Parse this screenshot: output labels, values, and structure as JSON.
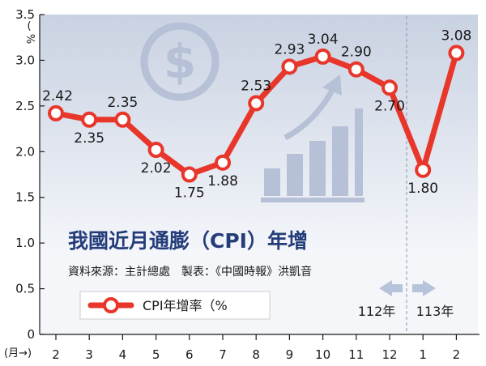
{
  "chart_data": {
    "type": "line",
    "title": "我國近月通膨（CPI）年增",
    "source": "資料來源：主計總處　製表：《中國時報》洪凱音",
    "ylabel": "%",
    "xlabel": "(月→)",
    "categories": [
      "2",
      "3",
      "4",
      "5",
      "6",
      "7",
      "8",
      "9",
      "10",
      "11",
      "12",
      "1",
      "2"
    ],
    "series": [
      {
        "name": "CPI年增率（%",
        "values": [
          2.42,
          2.35,
          2.35,
          2.02,
          1.75,
          1.88,
          2.53,
          2.93,
          3.04,
          2.9,
          2.7,
          1.8,
          3.08
        ],
        "labels": [
          "2.42",
          "2.35",
          "2.35",
          "2.02",
          "1.75",
          "1.88",
          "2.53",
          "2.93",
          "3.04",
          "2.90",
          "2.70",
          "1.80",
          "3.08"
        ]
      }
    ],
    "ylim": [
      0,
      3.5
    ],
    "yticks": [
      "0",
      "0.5",
      "1.0",
      "1.5",
      "2.0",
      "2.5",
      "3.0",
      "3.5"
    ],
    "grid": false,
    "legend": "bottom-left",
    "year_labels": [
      {
        "text": "112年",
        "arrow": "left"
      },
      {
        "text": "113年",
        "arrow": "right"
      }
    ],
    "colors": {
      "line": "#e8362b",
      "marker_fill": "#ffffff",
      "title": "#243d7a",
      "background_top": "#c9d2e2",
      "background_bottom": "#f4f6fa",
      "decor": "#b6c0d6",
      "year_arrow": "#b7c3da"
    }
  }
}
